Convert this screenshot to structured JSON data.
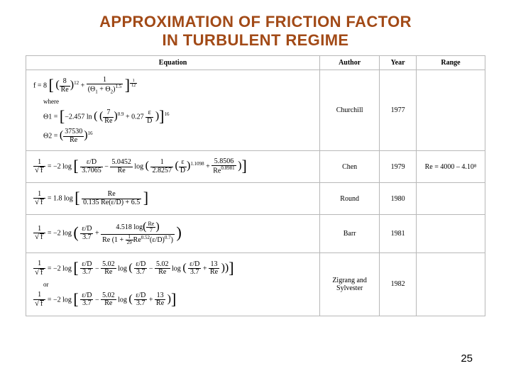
{
  "title_line1": "APPROXIMATION OF FRICTION FACTOR",
  "title_line2": "IN TURBULENT REGIME",
  "title_color": "#a24a17",
  "page_number": "25",
  "table": {
    "border_color": "#b8b8b8",
    "col_widths_pct": [
      64,
      13,
      8,
      15
    ],
    "headers": [
      "Equation",
      "Author",
      "Year",
      "Range"
    ]
  },
  "rows": [
    {
      "author": "Churchill",
      "year": "1977",
      "range": "",
      "eq": {
        "main_lhs": "f = 8",
        "t1_a": "8",
        "t1_b": "Re",
        "t1_exp": "12",
        "plus": " + ",
        "t2_a": "1",
        "t2_b1": "(Θ",
        "t2_b1s": "1",
        "t2_b2": " + Θ",
        "t2_b2s": "2",
        "t2_b3": ")",
        "t2_bexp": "1.5",
        "outer_exp_n": "1",
        "outer_exp_d": "12",
        "where": "where",
        "th1_lhs": "Θ1 = ",
        "th1_a": "−2.457 ln",
        "th1_f1n": "7",
        "th1_f1d": "Re",
        "th1_f1exp": "0.9",
        "th1_plus": " + 0.27",
        "th1_f2n": "ε",
        "th1_f2d": "D",
        "th1_exp": "16",
        "th2_lhs": "Θ2 = ",
        "th2_n": "37530",
        "th2_d": "Re",
        "th2_exp": "16"
      }
    },
    {
      "author": "Chen",
      "year": "1979",
      "range": "Re = 4000 – 4.10⁸",
      "eq": {
        "lhs_n": "1",
        "lhs_d": "f",
        "pre": " = −2 log",
        "f1n": "ε/D",
        "f1d": "3.7065",
        "minus": " − ",
        "f2n": "5.0452",
        "f2d": "Re",
        "log2": " log",
        "f3n": "1",
        "f3d": "2.8257",
        "f3b_n": "ε",
        "f3b_d": "D",
        "f3b_exp": "1.1098",
        "plus": " + ",
        "f4n": "5.8506",
        "f4d": "Re",
        "f4dexp": "0.8981"
      }
    },
    {
      "author": "Round",
      "year": "1980",
      "range": "",
      "eq": {
        "lhs_n": "1",
        "lhs_d": "f",
        "pre": " = 1.8 log",
        "fn": "Re",
        "fd": "0.135 Re(ε/D) + 6.5"
      }
    },
    {
      "author": "Barr",
      "year": "1981",
      "range": "",
      "eq": {
        "lhs_n": "1",
        "lhs_d": "f",
        "pre": " = −2 log",
        "f1n": "ε/D",
        "f1d": "3.7",
        "plus": " + ",
        "f2n_a": "4.518 log",
        "f2n_bn": "Re",
        "f2n_bd": "7",
        "f2d_a": "Re",
        "f2d_b": "(1 + ",
        "f2d_cn": "1",
        "f2d_cd": "29",
        "f2d_d": "Re",
        "f2d_dexp": "0.52",
        "f2d_e": "(ε/D)",
        "f2d_eexp": "0.7",
        "f2d_f": ")"
      }
    },
    {
      "author": "Zigrang and Sylvester",
      "year": "1982",
      "range": "",
      "eq": {
        "lhs_n": "1",
        "lhs_d": "f",
        "pre": " = −2 log",
        "f1n": "ε/D",
        "f1d": "3.7",
        "minus": " − ",
        "f2n": "5.02",
        "f2d": "Re",
        "log2": " log",
        "f3n": "ε/D",
        "f3d": "3.7",
        "minus2": " − ",
        "f4n": "5.02",
        "f4d": "Re",
        "log3": " log",
        "f5n": "ε/D",
        "f5d": "3.7",
        "plus": " + ",
        "f6n": "13",
        "f6d": "Re",
        "or": "or",
        "alt_pre": " = −2 log",
        "a1n": "ε/D",
        "a1d": "3.7",
        "a_minus": " − ",
        "a2n": "5.02",
        "a2d": "Re",
        "a_log": " log",
        "a3n": "ε/D",
        "a3d": "3.7",
        "a_plus": " + ",
        "a4n": "13",
        "a4d": "Re"
      }
    }
  ]
}
